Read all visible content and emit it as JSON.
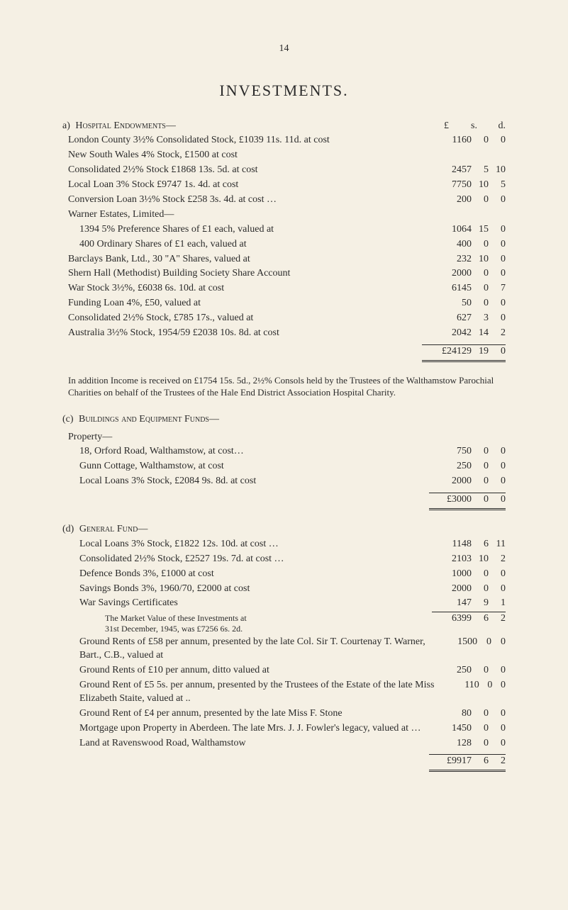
{
  "page_number": "14",
  "title": "INVESTMENTS.",
  "currency_header": {
    "pound": "£",
    "s": "s.",
    "d": "d."
  },
  "sectionA": {
    "letter": "a)",
    "label": "Hospital Endowments—",
    "items": [
      {
        "desc": "London County 3½% Consolidated Stock, £1039 11s. 11d. at cost",
        "l": "1160",
        "s": "0",
        "d": "0"
      },
      {
        "desc": "New South Wales 4% Stock, £1500 at cost",
        "l": "",
        "s": "",
        "d": ""
      },
      {
        "desc": "Consolidated 2½% Stock £1868 13s. 5d. at cost",
        "l": "2457",
        "s": "5",
        "d": "10"
      },
      {
        "desc": "Local Loan 3% Stock £9747 1s. 4d. at cost",
        "l": "7750",
        "s": "10",
        "d": "5"
      },
      {
        "desc": "Conversion Loan 3½% Stock £258 3s. 4d. at cost …",
        "l": "200",
        "s": "0",
        "d": "0"
      },
      {
        "desc": "Warner Estates, Limited—",
        "l": "",
        "s": "",
        "d": ""
      },
      {
        "desc": "1394 5% Preference Shares of £1 each, valued at",
        "indent": true,
        "l": "1064",
        "s": "15",
        "d": "0"
      },
      {
        "desc": "400 Ordinary Shares of £1 each, valued at",
        "indent": true,
        "l": "400",
        "s": "0",
        "d": "0"
      },
      {
        "desc": "Barclays Bank, Ltd., 30 \"A\" Shares, valued at",
        "l": "232",
        "s": "10",
        "d": "0"
      },
      {
        "desc": "Shern Hall (Methodist) Building Society Share Account",
        "l": "2000",
        "s": "0",
        "d": "0"
      },
      {
        "desc": "War Stock 3½%, £6038 6s. 10d. at cost",
        "l": "6145",
        "s": "0",
        "d": "7"
      },
      {
        "desc": "Funding Loan 4%, £50, valued at",
        "l": "50",
        "s": "0",
        "d": "0"
      },
      {
        "desc": "Consolidated 2½% Stock, £785 17s., valued at",
        "l": "627",
        "s": "3",
        "d": "0"
      },
      {
        "desc": "Australia 3½% Stock, 1954/59 £2038 10s. 8d. at cost",
        "l": "2042",
        "s": "14",
        "d": "2"
      }
    ],
    "total": {
      "l": "£24129",
      "s": "19",
      "d": "0"
    }
  },
  "noteA": "In addition Income is received on £1754 15s. 5d., 2½% Consols held by the Trustees of the Walthamstow Parochial Charities on behalf of the Trustees of the Hale End District Association Hospital Charity.",
  "sectionC": {
    "letter": "(c)",
    "label": "Buildings and Equipment Funds—",
    "heading": "Property—",
    "items": [
      {
        "desc": "18, Orford Road, Walthamstow, at cost…",
        "l": "750",
        "s": "0",
        "d": "0"
      },
      {
        "desc": "Gunn Cottage, Walthamstow, at cost",
        "l": "250",
        "s": "0",
        "d": "0"
      },
      {
        "desc": "Local Loans 3% Stock, £2084 9s. 8d. at cost",
        "l": "2000",
        "s": "0",
        "d": "0"
      }
    ],
    "total": {
      "l": "£3000",
      "s": "0",
      "d": "0"
    }
  },
  "sectionD": {
    "letter": "(d)",
    "label": "General Fund—",
    "group1": [
      {
        "desc": "Local Loans 3% Stock, £1822 12s. 10d. at cost …",
        "l": "1148",
        "s": "6",
        "d": "11"
      },
      {
        "desc": "Consolidated 2½% Stock, £2527 19s. 7d. at cost …",
        "l": "2103",
        "s": "10",
        "d": "2"
      },
      {
        "desc": "Defence Bonds 3%, £1000 at cost",
        "l": "1000",
        "s": "0",
        "d": "0"
      },
      {
        "desc": "Savings Bonds 3%, 1960/70, £2000 at cost",
        "l": "2000",
        "s": "0",
        "d": "0"
      },
      {
        "desc": "War Savings Certificates",
        "l": "147",
        "s": "9",
        "d": "1"
      }
    ],
    "group1_note1": "The Market Value of these Investments at",
    "group1_note2": "31st December, 1945, was £7256 6s. 2d.",
    "group1_total": {
      "l": "6399",
      "s": "6",
      "d": "2"
    },
    "group2": [
      {
        "desc": "Ground Rents of £58 per annum, presented by the late Col. Sir T. Courtenay T. Warner, Bart., C.B., valued at",
        "l": "1500",
        "s": "0",
        "d": "0"
      },
      {
        "desc": "Ground Rents of £10 per annum,        ditto        valued at",
        "l": "250",
        "s": "0",
        "d": "0"
      },
      {
        "desc": "Ground Rent of £5 5s. per annum, presented by the Trustees of the Estate of the late Miss Elizabeth Staite, valued at ..",
        "l": "110",
        "s": "0",
        "d": "0"
      },
      {
        "desc": "Ground Rent of £4 per annum, presented by the late Miss F. Stone",
        "l": "80",
        "s": "0",
        "d": "0"
      },
      {
        "desc": "Mortgage upon Property in Aberdeen. The late Mrs. J. J. Fowler's legacy, valued at …",
        "l": "1450",
        "s": "0",
        "d": "0"
      },
      {
        "desc": "Land at Ravenswood Road, Walthamstow",
        "l": "128",
        "s": "0",
        "d": "0"
      }
    ],
    "total": {
      "l": "£9917",
      "s": "6",
      "d": "2"
    }
  }
}
